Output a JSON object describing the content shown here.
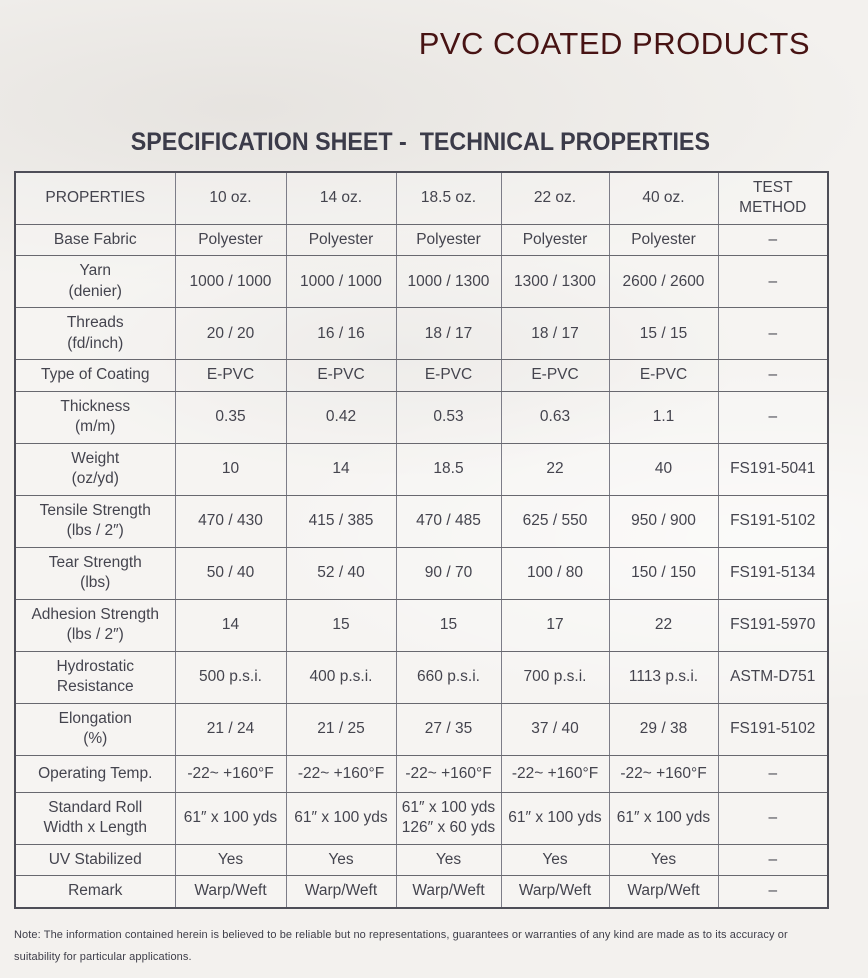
{
  "header": {
    "title": "PVC COATED PRODUCTS",
    "subtitle": "SPECIFICATION SHEET -  TECHNICAL PROPERTIES"
  },
  "colors": {
    "title_text": "#471313",
    "body_text": "#44444e",
    "table_border": "#4e4e58",
    "page_background": "#f3f1ee"
  },
  "table": {
    "columns": [
      "PROPERTIES",
      "10 oz.",
      "14 oz.",
      "18.5 oz.",
      "22 oz.",
      "40 oz.",
      "TEST\nMETHOD"
    ],
    "rows": [
      {
        "label": "Base Fabric",
        "values": [
          "Polyester",
          "Polyester",
          "Polyester",
          "Polyester",
          "Polyester"
        ],
        "test_method": "–"
      },
      {
        "label": "Yarn\n(denier)",
        "values": [
          "1000 / 1000",
          "1000 / 1000",
          "1000 / 1300",
          "1300 / 1300",
          "2600 / 2600"
        ],
        "test_method": "–"
      },
      {
        "label": "Threads\n(fd/inch)",
        "values": [
          "20 / 20",
          "16 / 16",
          "18 / 17",
          "18 / 17",
          "15 / 15"
        ],
        "test_method": "–"
      },
      {
        "label": "Type of Coating",
        "values": [
          "E-PVC",
          "E-PVC",
          "E-PVC",
          "E-PVC",
          "E-PVC"
        ],
        "test_method": "–"
      },
      {
        "label": "Thickness\n(m/m)",
        "values": [
          "0.35",
          "0.42",
          "0.53",
          "0.63",
          "1.1"
        ],
        "test_method": "–"
      },
      {
        "label": "Weight\n(oz/yd)",
        "values": [
          "10",
          "14",
          "18.5",
          "22",
          "40"
        ],
        "test_method": "FS191-5041"
      },
      {
        "label": "Tensile Strength\n(lbs / 2″)",
        "values": [
          "470 / 430",
          "415 / 385",
          "470 / 485",
          "625 / 550",
          "950 / 900"
        ],
        "test_method": "FS191-5102"
      },
      {
        "label": "Tear Strength\n(lbs)",
        "values": [
          "50 / 40",
          "52 / 40",
          "90 / 70",
          "100 / 80",
          "150 / 150"
        ],
        "test_method": "FS191-5134"
      },
      {
        "label": "Adhesion Strength\n(lbs / 2″)",
        "values": [
          "14",
          "15",
          "15",
          "17",
          "22"
        ],
        "test_method": "FS191-5970"
      },
      {
        "label": "Hydrostatic\nResistance",
        "values": [
          "500 p.s.i.",
          "400 p.s.i.",
          "660 p.s.i.",
          "700 p.s.i.",
          "1113 p.s.i."
        ],
        "test_method": "ASTM-D751"
      },
      {
        "label": "Elongation\n(%)",
        "values": [
          "21 / 24",
          "21 / 25",
          "27 / 35",
          "37 / 40",
          "29 / 38"
        ],
        "test_method": "FS191-5102"
      },
      {
        "label": "Operating Temp.",
        "values": [
          "-22~ +160°F",
          "-22~ +160°F",
          "-22~ +160°F",
          "-22~ +160°F",
          "-22~ +160°F"
        ],
        "test_method": "–"
      },
      {
        "label": "Standard Roll\nWidth x Length",
        "values": [
          "61″ x 100 yds",
          "61″ x 100 yds",
          "61″ x 100 yds\n126″ x 60 yds",
          "61″ x 100 yds",
          "61″ x 100 yds"
        ],
        "test_method": "–"
      },
      {
        "label": "UV Stabilized",
        "values": [
          "Yes",
          "Yes",
          "Yes",
          "Yes",
          "Yes"
        ],
        "test_method": "–"
      },
      {
        "label": "Remark",
        "values": [
          "Warp/Weft",
          "Warp/Weft",
          "Warp/Weft",
          "Warp/Weft",
          "Warp/Weft"
        ],
        "test_method": "–"
      }
    ]
  },
  "footer": {
    "note": "Note: The information contained herein is believed to be reliable but no representations, guarantees or warranties of any kind are made as to its accuracy or suitability for particular applications."
  }
}
